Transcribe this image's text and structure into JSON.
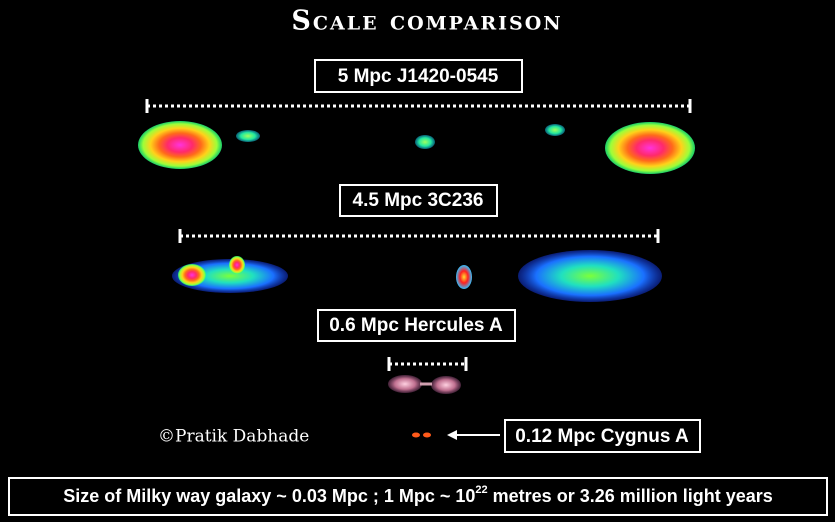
{
  "header": {
    "title": "Scale comparison"
  },
  "labels": [
    {
      "text": "5 Mpc  J1420-0545"
    },
    {
      "text": "4.5 Mpc 3C236"
    },
    {
      "text": "0.6 Mpc Hercules A"
    },
    {
      "text": "0.12 Mpc Cygnus A"
    }
  ],
  "credit": "©Pratik Dabhade",
  "footer": {
    "before": "Size of Milky way galaxy ~ 0.03 Mpc ; 1 Mpc ~ 10",
    "exponent": "22",
    "after": " metres or 3.26 million light years"
  }
}
